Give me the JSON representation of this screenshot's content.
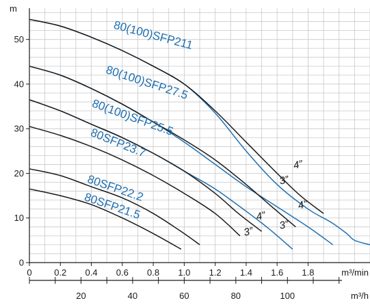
{
  "chart_data": {
    "type": "line",
    "title": "",
    "ylabel": "m",
    "xlabel": "m³/min",
    "x2label": "m³/h",
    "xlim": [
      0,
      2.2
    ],
    "ylim": [
      0,
      57
    ],
    "x_ticks": [
      "0",
      "0.2",
      "0.4",
      "0.6",
      "0.8",
      "1.0",
      "1.2",
      "1.4",
      "1.6",
      "1.8"
    ],
    "x_tick_values": [
      0,
      0.2,
      0.4,
      0.6,
      0.8,
      1.0,
      1.2,
      1.4,
      1.6,
      1.8
    ],
    "y_ticks": [
      "0",
      "10",
      "20",
      "30",
      "40",
      "50"
    ],
    "y_tick_values": [
      0,
      10,
      20,
      30,
      40,
      50
    ],
    "x2_ticks": [
      "20",
      "40",
      "60",
      "80",
      "100"
    ],
    "x2_tick_values": [
      20,
      40,
      60,
      80,
      100
    ],
    "grid": true,
    "colors": {
      "blue": "#1f6fb0",
      "black": "#1a1a1a",
      "grid": "#c8c8c8"
    },
    "series": [
      {
        "name": "80(100)SFP211",
        "color": "#1f6fb0",
        "x": [
          0,
          0.2,
          0.4,
          0.6,
          0.8,
          1.0,
          1.2,
          1.4,
          1.6,
          1.8,
          1.95,
          2.05,
          2.1,
          2.2
        ],
        "y": [
          54.5,
          53.0,
          50.5,
          47.5,
          44.0,
          40.0,
          33.5,
          25.0,
          17.5,
          12.0,
          9.0,
          6.5,
          5.0,
          4.0
        ]
      },
      {
        "name": "80(100)SFP211 (3\")",
        "color": "#1a1a1a",
        "x": [
          0,
          0.2,
          0.4,
          0.6,
          0.8,
          1.0,
          1.2,
          1.4,
          1.6,
          1.75,
          1.9
        ],
        "y": [
          54.5,
          53.0,
          50.5,
          47.5,
          44.0,
          40.0,
          34.0,
          27.0,
          20.0,
          15.0,
          11.0
        ]
      },
      {
        "name": "80(100)SFP27.5",
        "color": "#1f6fb0",
        "x": [
          0,
          0.2,
          0.4,
          0.6,
          0.8,
          1.0,
          1.2,
          1.4,
          1.6,
          1.8,
          1.96
        ],
        "y": [
          44.0,
          42.0,
          39.0,
          35.5,
          31.5,
          27.0,
          22.0,
          17.0,
          12.5,
          8.0,
          4.0
        ]
      },
      {
        "name": "80(100)SFP27.5 (3\")",
        "color": "#1a1a1a",
        "x": [
          0,
          0.2,
          0.4,
          0.6,
          0.8,
          1.0,
          1.2,
          1.4,
          1.55,
          1.72
        ],
        "y": [
          44.0,
          42.0,
          39.0,
          35.5,
          31.5,
          27.5,
          23.0,
          17.5,
          13.0,
          8.0
        ]
      },
      {
        "name": "80(100)SFP25.5",
        "color": "#1f6fb0",
        "x": [
          0,
          0.2,
          0.4,
          0.6,
          0.8,
          1.0,
          1.2,
          1.4,
          1.55,
          1.7
        ],
        "y": [
          36.5,
          34.0,
          31.0,
          28.0,
          24.5,
          20.5,
          16.5,
          11.5,
          7.5,
          3.0
        ]
      },
      {
        "name": "80(100)SFP25.5 (3\")",
        "color": "#1a1a1a",
        "x": [
          0,
          0.2,
          0.4,
          0.6,
          0.8,
          1.0,
          1.2,
          1.35,
          1.5
        ],
        "y": [
          36.5,
          34.0,
          31.0,
          28.0,
          24.5,
          20.5,
          15.5,
          11.0,
          7.0
        ]
      },
      {
        "name": "80SFP23.7",
        "color": "#1a1a1a",
        "x": [
          0,
          0.2,
          0.4,
          0.6,
          0.8,
          1.0,
          1.2,
          1.36
        ],
        "y": [
          30.5,
          28.5,
          26.0,
          23.0,
          19.5,
          15.5,
          11.0,
          6.0
        ]
      },
      {
        "name": "80SFP22.2",
        "color": "#1a1a1a",
        "x": [
          0,
          0.2,
          0.4,
          0.6,
          0.8,
          1.0,
          1.1
        ],
        "y": [
          21.0,
          19.5,
          17.0,
          14.5,
          11.0,
          6.5,
          4.0
        ]
      },
      {
        "name": "80SFP21.5",
        "color": "#1a1a1a",
        "x": [
          0,
          0.2,
          0.4,
          0.6,
          0.8,
          0.98
        ],
        "y": [
          16.5,
          15.0,
          13.0,
          10.0,
          6.5,
          3.0
        ]
      }
    ],
    "curve_labels": [
      {
        "text": "80(100)SFP211",
        "x": 0.54,
        "y": 52.5,
        "angle": 15
      },
      {
        "text": "80(100)SFP27.5",
        "x": 0.49,
        "y": 42.5,
        "angle": 18
      },
      {
        "text": "80(100)SFP25.5",
        "x": 0.4,
        "y": 35.0,
        "angle": 20
      },
      {
        "text": "80SFP23.7",
        "x": 0.39,
        "y": 28.5,
        "angle": 22
      },
      {
        "text": "80SFP22.2",
        "x": 0.37,
        "y": 18.0,
        "angle": 19
      },
      {
        "text": "80SFP21.5",
        "x": 0.35,
        "y": 14.0,
        "angle": 19
      }
    ],
    "size_labels": [
      {
        "text": "4”",
        "x": 1.71,
        "y": 21.0
      },
      {
        "text": "3”",
        "x": 1.62,
        "y": 17.5
      },
      {
        "text": "4”",
        "x": 1.74,
        "y": 12.0
      },
      {
        "text": "4”",
        "x": 1.47,
        "y": 9.5
      },
      {
        "text": "3”",
        "x": 1.62,
        "y": 7.5
      },
      {
        "text": "3”",
        "x": 1.39,
        "y": 6.0
      }
    ]
  }
}
